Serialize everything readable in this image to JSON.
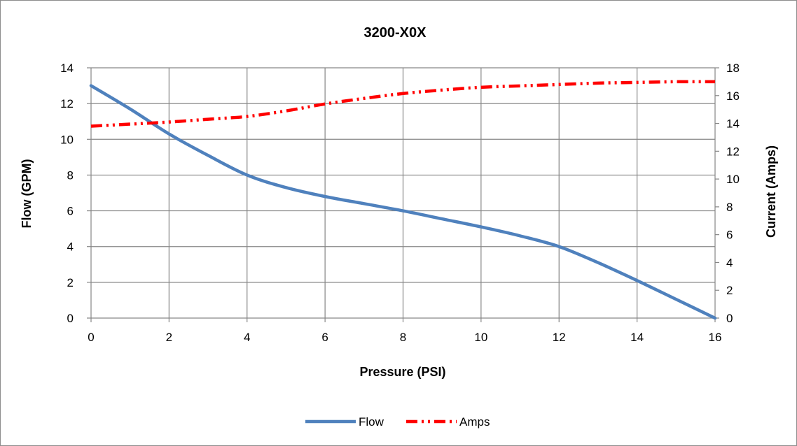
{
  "chart_data": {
    "type": "line",
    "title": "3200-X0X",
    "xlabel": "Pressure (PSI)",
    "ylabel": "Flow (GPM)",
    "y2label": "Current (Amps)",
    "xlim": [
      0,
      16
    ],
    "ylim": [
      0,
      14
    ],
    "y2lim": [
      0,
      18
    ],
    "xticks": [
      0,
      2,
      4,
      6,
      8,
      10,
      12,
      14,
      16
    ],
    "yticks": [
      0,
      2,
      4,
      6,
      8,
      10,
      12,
      14
    ],
    "y2ticks": [
      0,
      2,
      4,
      6,
      8,
      10,
      12,
      14,
      16,
      18
    ],
    "grid": true,
    "legend_position": "bottom",
    "series": [
      {
        "name": "Flow",
        "axis": "left",
        "color": "#4f81bd",
        "style": "solid",
        "x": [
          0,
          1,
          2,
          3,
          4,
          5,
          6,
          7,
          8,
          9,
          10,
          11,
          12,
          13,
          14,
          15,
          16
        ],
        "values": [
          13.0,
          11.7,
          10.3,
          9.1,
          8.0,
          7.3,
          6.8,
          6.4,
          6.0,
          5.55,
          5.1,
          4.6,
          4.0,
          3.1,
          2.1,
          1.05,
          0.0
        ]
      },
      {
        "name": "Amps",
        "axis": "right",
        "color": "#ff0000",
        "style": "dash-dot-dot",
        "x": [
          0,
          1,
          2,
          3,
          4,
          5,
          6,
          7,
          8,
          9,
          10,
          11,
          12,
          13,
          14,
          15,
          16
        ],
        "values": [
          13.8,
          13.95,
          14.1,
          14.3,
          14.5,
          14.9,
          15.4,
          15.8,
          16.15,
          16.4,
          16.6,
          16.7,
          16.8,
          16.9,
          16.95,
          17.0,
          17.0
        ]
      }
    ]
  }
}
